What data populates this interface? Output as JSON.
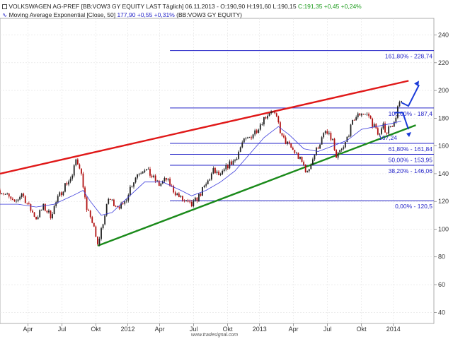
{
  "header": {
    "line1": {
      "name": "VOLKSWAGEN AG-PREF",
      "meta": "[BB:VOW3 GY EQUITY LAST Täglich] 06.11.2013 - O:190,90 H:191,60 L:190,15",
      "change": "C:191,35 +0,45 +0,24%"
    },
    "line2": {
      "name": "Moving Average Exponential [Close, 50]",
      "value": "177,90 +0,55 +0,31%",
      "symbol": "(BB:VOW3 GY EQUITY)"
    }
  },
  "watermark": "www.tradesignal.com",
  "chart_data": {
    "type": "line",
    "title": "VOLKSWAGEN AG-PREF",
    "y_ticks": [
      40,
      60,
      80,
      100,
      120,
      140,
      160,
      180,
      200,
      220,
      240
    ],
    "ylim": [
      32,
      252
    ],
    "x_ticks": [
      "Apr",
      "Jul",
      "Okt",
      "2012",
      "Apr",
      "Jul",
      "Okt",
      "2013",
      "Apr",
      "Jul",
      "Okt",
      "2014"
    ],
    "price_path": [
      [
        0,
        128
      ],
      [
        2,
        124
      ],
      [
        4,
        118
      ],
      [
        6,
        126
      ],
      [
        8,
        116
      ],
      [
        10,
        108
      ],
      [
        12,
        116
      ],
      [
        14,
        110
      ],
      [
        16,
        122
      ],
      [
        18,
        132
      ],
      [
        20,
        138
      ],
      [
        21,
        150
      ],
      [
        22,
        146
      ],
      [
        23,
        132
      ],
      [
        24,
        112
      ],
      [
        25,
        110
      ],
      [
        26,
        100
      ],
      [
        27,
        88
      ],
      [
        28,
        100
      ],
      [
        29,
        110
      ],
      [
        30,
        122
      ],
      [
        32,
        118
      ],
      [
        34,
        116
      ],
      [
        36,
        130
      ],
      [
        38,
        140
      ],
      [
        40,
        144
      ],
      [
        42,
        138
      ],
      [
        44,
        132
      ],
      [
        46,
        136
      ],
      [
        48,
        128
      ],
      [
        50,
        122
      ],
      [
        52,
        118
      ],
      [
        53,
        117
      ],
      [
        55,
        124
      ],
      [
        57,
        132
      ],
      [
        59,
        142
      ],
      [
        61,
        138
      ],
      [
        63,
        146
      ],
      [
        65,
        150
      ],
      [
        67,
        162
      ],
      [
        69,
        166
      ],
      [
        71,
        172
      ],
      [
        73,
        180
      ],
      [
        75,
        186
      ],
      [
        76,
        182
      ],
      [
        77,
        176
      ],
      [
        78,
        166
      ],
      [
        80,
        160
      ],
      [
        82,
        154
      ],
      [
        84,
        146
      ],
      [
        85,
        140
      ],
      [
        86,
        148
      ],
      [
        88,
        160
      ],
      [
        90,
        170
      ],
      [
        92,
        164
      ],
      [
        93,
        150
      ],
      [
        94,
        156
      ],
      [
        95,
        158
      ],
      [
        96,
        166
      ],
      [
        98,
        180
      ],
      [
        100,
        184
      ],
      [
        102,
        182
      ],
      [
        103,
        176
      ],
      [
        104,
        172
      ],
      [
        105,
        168
      ],
      [
        106,
        174
      ],
      [
        107,
        170
      ],
      [
        108,
        176
      ],
      [
        109,
        176
      ],
      [
        110,
        188
      ],
      [
        111,
        191.35
      ]
    ],
    "ema50_path": [
      [
        0,
        118
      ],
      [
        5,
        118
      ],
      [
        10,
        116
      ],
      [
        15,
        118
      ],
      [
        20,
        124
      ],
      [
        23,
        128
      ],
      [
        25,
        120
      ],
      [
        28,
        110
      ],
      [
        31,
        112
      ],
      [
        35,
        122
      ],
      [
        40,
        134
      ],
      [
        45,
        134
      ],
      [
        50,
        128
      ],
      [
        53,
        124
      ],
      [
        57,
        128
      ],
      [
        61,
        134
      ],
      [
        65,
        142
      ],
      [
        69,
        154
      ],
      [
        73,
        166
      ],
      [
        77,
        174
      ],
      [
        80,
        168
      ],
      [
        84,
        158
      ],
      [
        88,
        156
      ],
      [
        92,
        160
      ],
      [
        96,
        164
      ],
      [
        100,
        172
      ],
      [
        104,
        174
      ],
      [
        108,
        176
      ],
      [
        111,
        177.9
      ]
    ],
    "fib_levels": [
      {
        "label": "161,80% - 228,74",
        "value": 228.74
      },
      {
        "label": "100,00% - 187,4",
        "value": 187.4
      },
      {
        "label": "61,80% - 161,84",
        "value": 161.84
      },
      {
        "label": "50,00% - 153,95",
        "value": 153.95
      },
      {
        "label": "38,20% - 146,06",
        "value": 146.06
      },
      {
        "label": "0,00% - 120,5",
        "value": 120.5
      }
    ],
    "green_trend_label": "167,24",
    "trendlines": {
      "red": {
        "from": [
          0,
          140
        ],
        "to": [
          113,
          207
        ]
      },
      "green": {
        "from": [
          27,
          88
        ],
        "to": [
          115,
          175
        ]
      }
    }
  }
}
